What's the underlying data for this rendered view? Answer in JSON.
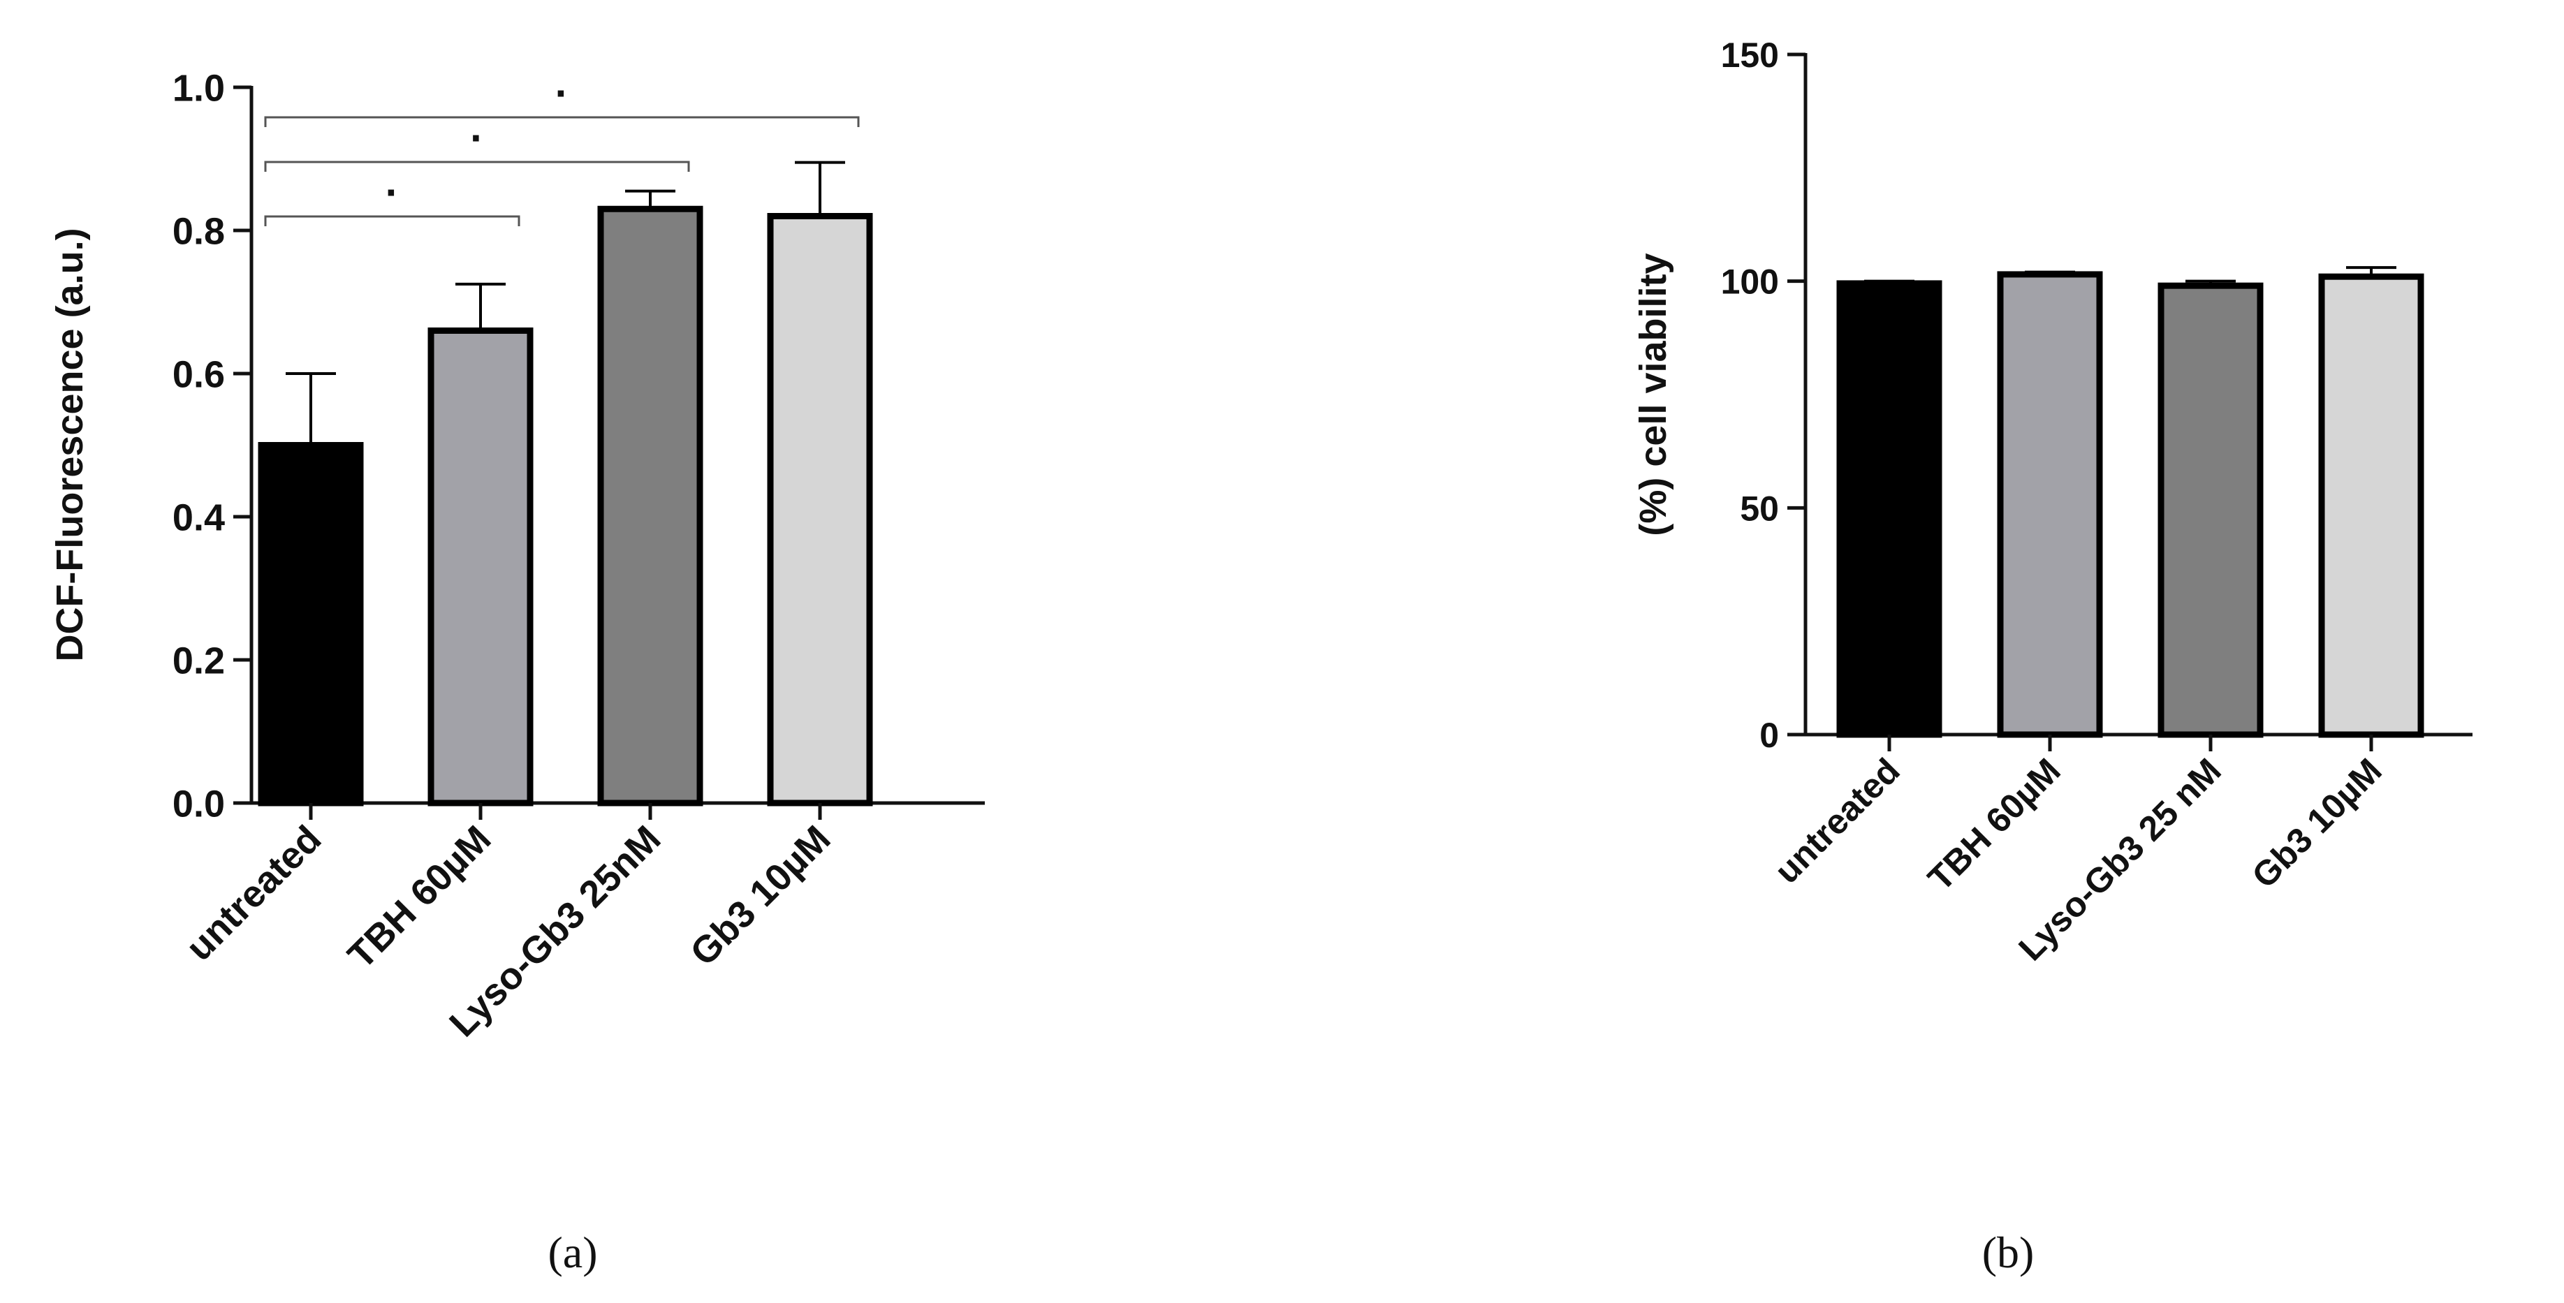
{
  "figure": {
    "panel_labels": [
      "(a)",
      "(b)"
    ]
  },
  "colors": {
    "axis": "#111111",
    "bar_stroke": "#000000",
    "bar_fills": [
      "#000000",
      "#a2a2a8",
      "#7f7f7f",
      "#d6d6d6"
    ]
  },
  "chart_data": [
    {
      "type": "bar",
      "panel": "(a)",
      "title": "",
      "xlabel": "",
      "ylabel": "DCF-Fluorescence (a.u.)",
      "categories": [
        "untreated",
        "TBH 60µM",
        "Lyso-Gb3 25nM",
        "Gb3 10µM"
      ],
      "values": [
        0.5,
        0.66,
        0.83,
        0.82
      ],
      "error": [
        0.1,
        0.065,
        0.025,
        0.075
      ],
      "ylim": [
        0,
        1.0
      ],
      "yticks": [
        0.0,
        0.2,
        0.4,
        0.6,
        0.8,
        1.0
      ],
      "ytick_labels": [
        "0.0",
        "0.2",
        "0.4",
        "0.6",
        "0.8",
        "1.0"
      ],
      "grid": false,
      "significance": [
        {
          "from": 0,
          "to": 1,
          "label": "·"
        },
        {
          "from": 0,
          "to": 2,
          "label": "·"
        },
        {
          "from": 0,
          "to": 3,
          "label": "·"
        }
      ]
    },
    {
      "type": "bar",
      "panel": "(b)",
      "title": "",
      "xlabel": "",
      "ylabel": "(%) cell viability",
      "categories": [
        "untreated",
        "TBH 60µM",
        "Lyso-Gb3 25 nM",
        "Gb3 10µM"
      ],
      "values": [
        99.5,
        101.5,
        99.0,
        101.0
      ],
      "error": [
        0.5,
        0.5,
        1.0,
        2.0
      ],
      "ylim": [
        0,
        150
      ],
      "yticks": [
        0,
        50,
        100,
        150
      ],
      "ytick_labels": [
        "0",
        "50",
        "100",
        "150"
      ],
      "grid": false
    }
  ]
}
